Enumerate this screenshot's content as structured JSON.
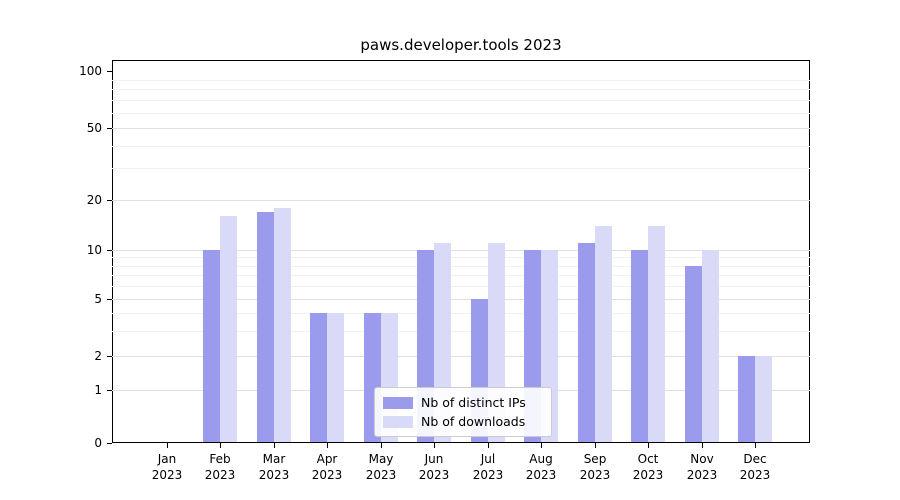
{
  "title": "paws.developer.tools 2023",
  "chart_data": {
    "type": "bar",
    "title": "paws.developer.tools 2023",
    "categories": [
      "Jan",
      "Feb",
      "Mar",
      "Apr",
      "May",
      "Jun",
      "Jul",
      "Aug",
      "Sep",
      "Oct",
      "Nov",
      "Dec"
    ],
    "category_year": "2023",
    "series": [
      {
        "name": "Nb of distinct IPs",
        "color": "#9b9bee",
        "values": [
          0,
          10,
          17,
          4,
          4,
          10,
          5,
          10,
          11,
          10,
          8,
          2
        ]
      },
      {
        "name": "Nb of downloads",
        "color": "#d9d9f8",
        "values": [
          0,
          16,
          18,
          4,
          4,
          11,
          11,
          10,
          14,
          14,
          10,
          2
        ]
      }
    ],
    "y_scale": "symlog",
    "yticks": [
      0,
      1,
      2,
      5,
      10,
      20,
      50,
      100
    ],
    "yticks_minor": [
      3,
      4,
      6,
      7,
      8,
      9,
      30,
      40,
      60,
      70,
      80,
      90
    ],
    "ylim": [
      0,
      100
    ],
    "grid": true,
    "legend_position": "lower center"
  }
}
